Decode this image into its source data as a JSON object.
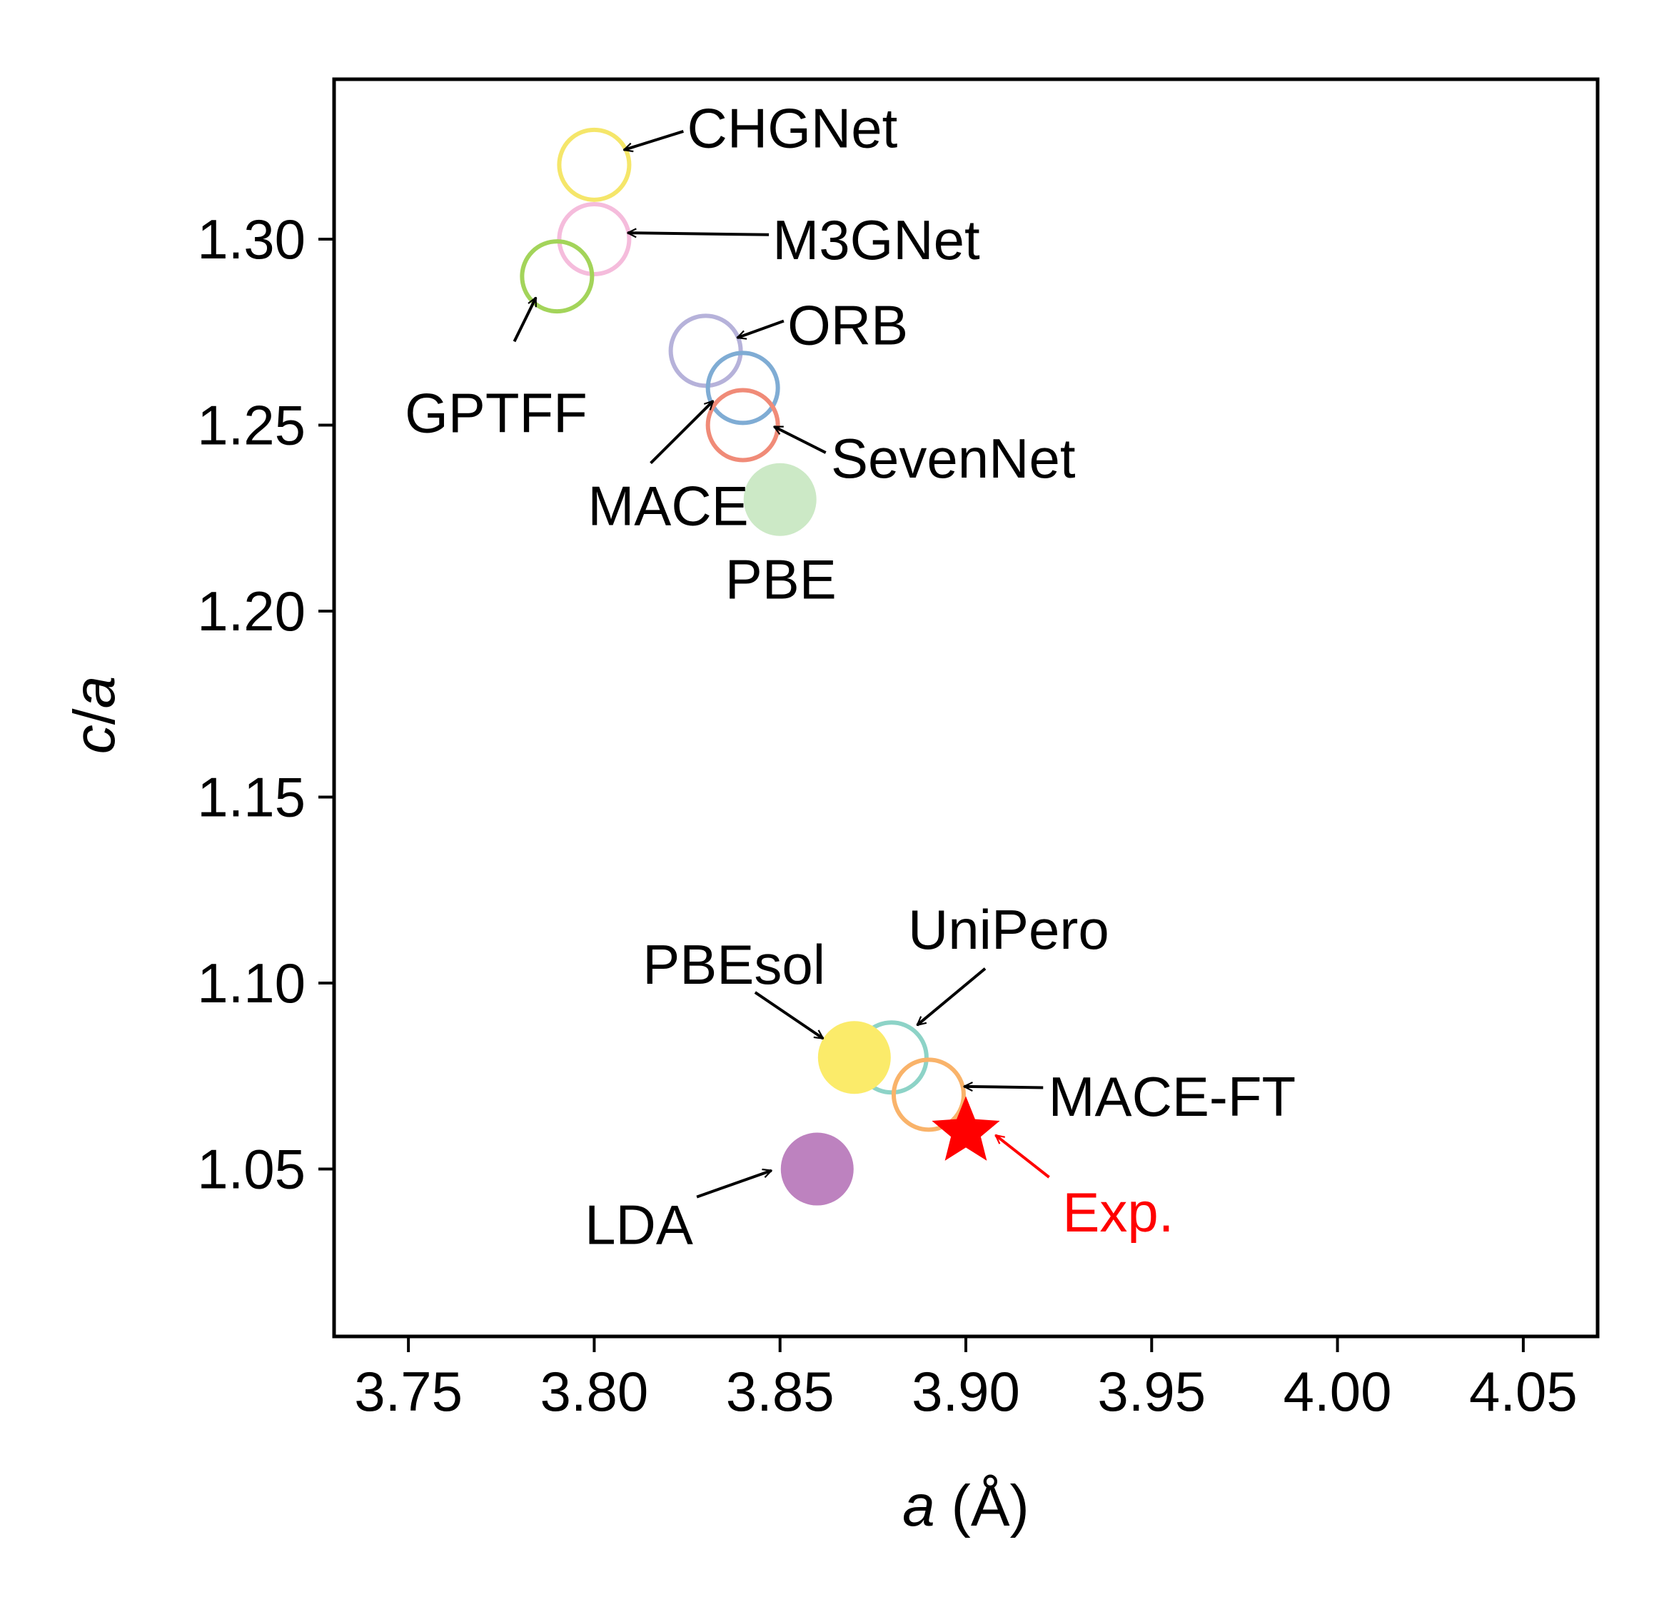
{
  "chart_data": {
    "type": "scatter",
    "title": "",
    "xlabel": "a (Å)",
    "xlabel_var": "a",
    "xlabel_unit": " (Å)",
    "ylabel": "c/a",
    "ylabel_parts": [
      "c",
      "/",
      "a"
    ],
    "xlim": [
      3.73,
      4.07
    ],
    "ylim": [
      1.005,
      1.343
    ],
    "xticks": [
      3.75,
      3.8,
      3.85,
      3.9,
      3.95,
      4.0,
      4.05
    ],
    "xtick_labels": [
      "3.75",
      "3.80",
      "3.85",
      "3.90",
      "3.95",
      "4.00",
      "4.05"
    ],
    "yticks": [
      1.05,
      1.1,
      1.15,
      1.2,
      1.25,
      1.3
    ],
    "ytick_labels": [
      "1.05",
      "1.10",
      "1.15",
      "1.20",
      "1.25",
      "1.30"
    ],
    "grid": false,
    "legend": "none (points annotated directly)",
    "series": [
      {
        "name": "CHGNet",
        "x": 3.8,
        "y": 1.32,
        "marker": "open-circle",
        "color": "#F5E66A",
        "label_anchor": "start",
        "label_at": [
          3.825,
          1.33
        ],
        "arrow_from": [
          3.824,
          1.329
        ],
        "arrow_to": [
          3.808,
          1.324
        ]
      },
      {
        "name": "M3GNet",
        "x": 3.8,
        "y": 1.3,
        "marker": "open-circle",
        "color": "#F5BCDC",
        "label_anchor": "start",
        "label_at": [
          3.848,
          1.3
        ],
        "arrow_from": [
          3.847,
          1.3012
        ],
        "arrow_to": [
          3.809,
          1.3017
        ]
      },
      {
        "name": "GPTFF",
        "x": 3.79,
        "y": 1.29,
        "marker": "open-circle",
        "color": "#A3D45A",
        "label_anchor": "middle",
        "label_at": [
          3.7736,
          1.2535
        ],
        "arrow_from": [
          3.7785,
          1.2725
        ],
        "arrow_to": [
          3.7843,
          1.2843
        ]
      },
      {
        "name": "ORB",
        "x": 3.83,
        "y": 1.27,
        "marker": "open-circle",
        "color": "#B6B2DA",
        "label_anchor": "start",
        "label_at": [
          3.852,
          1.2771
        ],
        "arrow_from": [
          3.851,
          1.278
        ],
        "arrow_to": [
          3.8385,
          1.2735
        ]
      },
      {
        "name": "MACE",
        "x": 3.84,
        "y": 1.26,
        "marker": "open-circle",
        "color": "#7FACD4",
        "label_anchor": "middle",
        "label_at": [
          3.8199,
          1.2285
        ],
        "arrow_from": [
          3.8152,
          1.2398
        ],
        "arrow_to": [
          3.832,
          1.2565
        ]
      },
      {
        "name": "SevenNet",
        "x": 3.84,
        "y": 1.25,
        "marker": "open-circle",
        "color": "#F08B78",
        "label_anchor": "start",
        "label_at": [
          3.8637,
          1.2413
        ],
        "arrow_from": [
          3.8623,
          1.2426
        ],
        "arrow_to": [
          3.8484,
          1.2496
        ]
      },
      {
        "name": "PBE",
        "x": 3.85,
        "y": 1.23,
        "marker": "filled-circle",
        "color": "#CCE9C6",
        "label_anchor": "middle",
        "label_at": [
          3.8502,
          1.2087
        ],
        "arrow_from": null,
        "arrow_to": null
      },
      {
        "name": "UniPero",
        "x": 3.88,
        "y": 1.08,
        "marker": "open-circle",
        "color": "#8DD3C7",
        "label_anchor": "middle",
        "label_at": [
          3.9115,
          1.1146
        ],
        "arrow_from": [
          3.9052,
          1.1039
        ],
        "arrow_to": [
          3.8869,
          1.0887
        ]
      },
      {
        "name": "PBEsol",
        "x": 3.87,
        "y": 1.08,
        "marker": "filled-circle",
        "color": "#FBEB6A",
        "label_anchor": "middle",
        "label_at": [
          3.8376,
          1.1052
        ],
        "arrow_from": [
          3.8433,
          1.0975
        ],
        "arrow_to": [
          3.8616,
          1.0851
        ]
      },
      {
        "name": "MACE-FT",
        "x": 3.89,
        "y": 1.07,
        "marker": "open-circle",
        "color": "#F9B36A",
        "label_anchor": "start",
        "label_at": [
          3.9222,
          1.0697
        ],
        "arrow_from": [
          3.9208,
          1.0719
        ],
        "arrow_to": [
          3.8995,
          1.0722
        ]
      },
      {
        "name": "LDA",
        "x": 3.86,
        "y": 1.05,
        "marker": "filled-circle",
        "color": "#BD82BF",
        "label_anchor": "end",
        "label_at": [
          3.8266,
          1.0352
        ],
        "arrow_from": [
          3.8276,
          1.0425
        ],
        "arrow_to": [
          3.8477,
          1.0496
        ]
      },
      {
        "name": "Exp.",
        "x": 3.9,
        "y": 1.06,
        "marker": "star",
        "color": "#FF0000",
        "label_anchor": "start",
        "label_at": [
          3.926,
          1.0386
        ],
        "arrow_from": [
          3.9224,
          1.0478
        ],
        "arrow_to": [
          3.908,
          1.0591
        ]
      }
    ]
  }
}
